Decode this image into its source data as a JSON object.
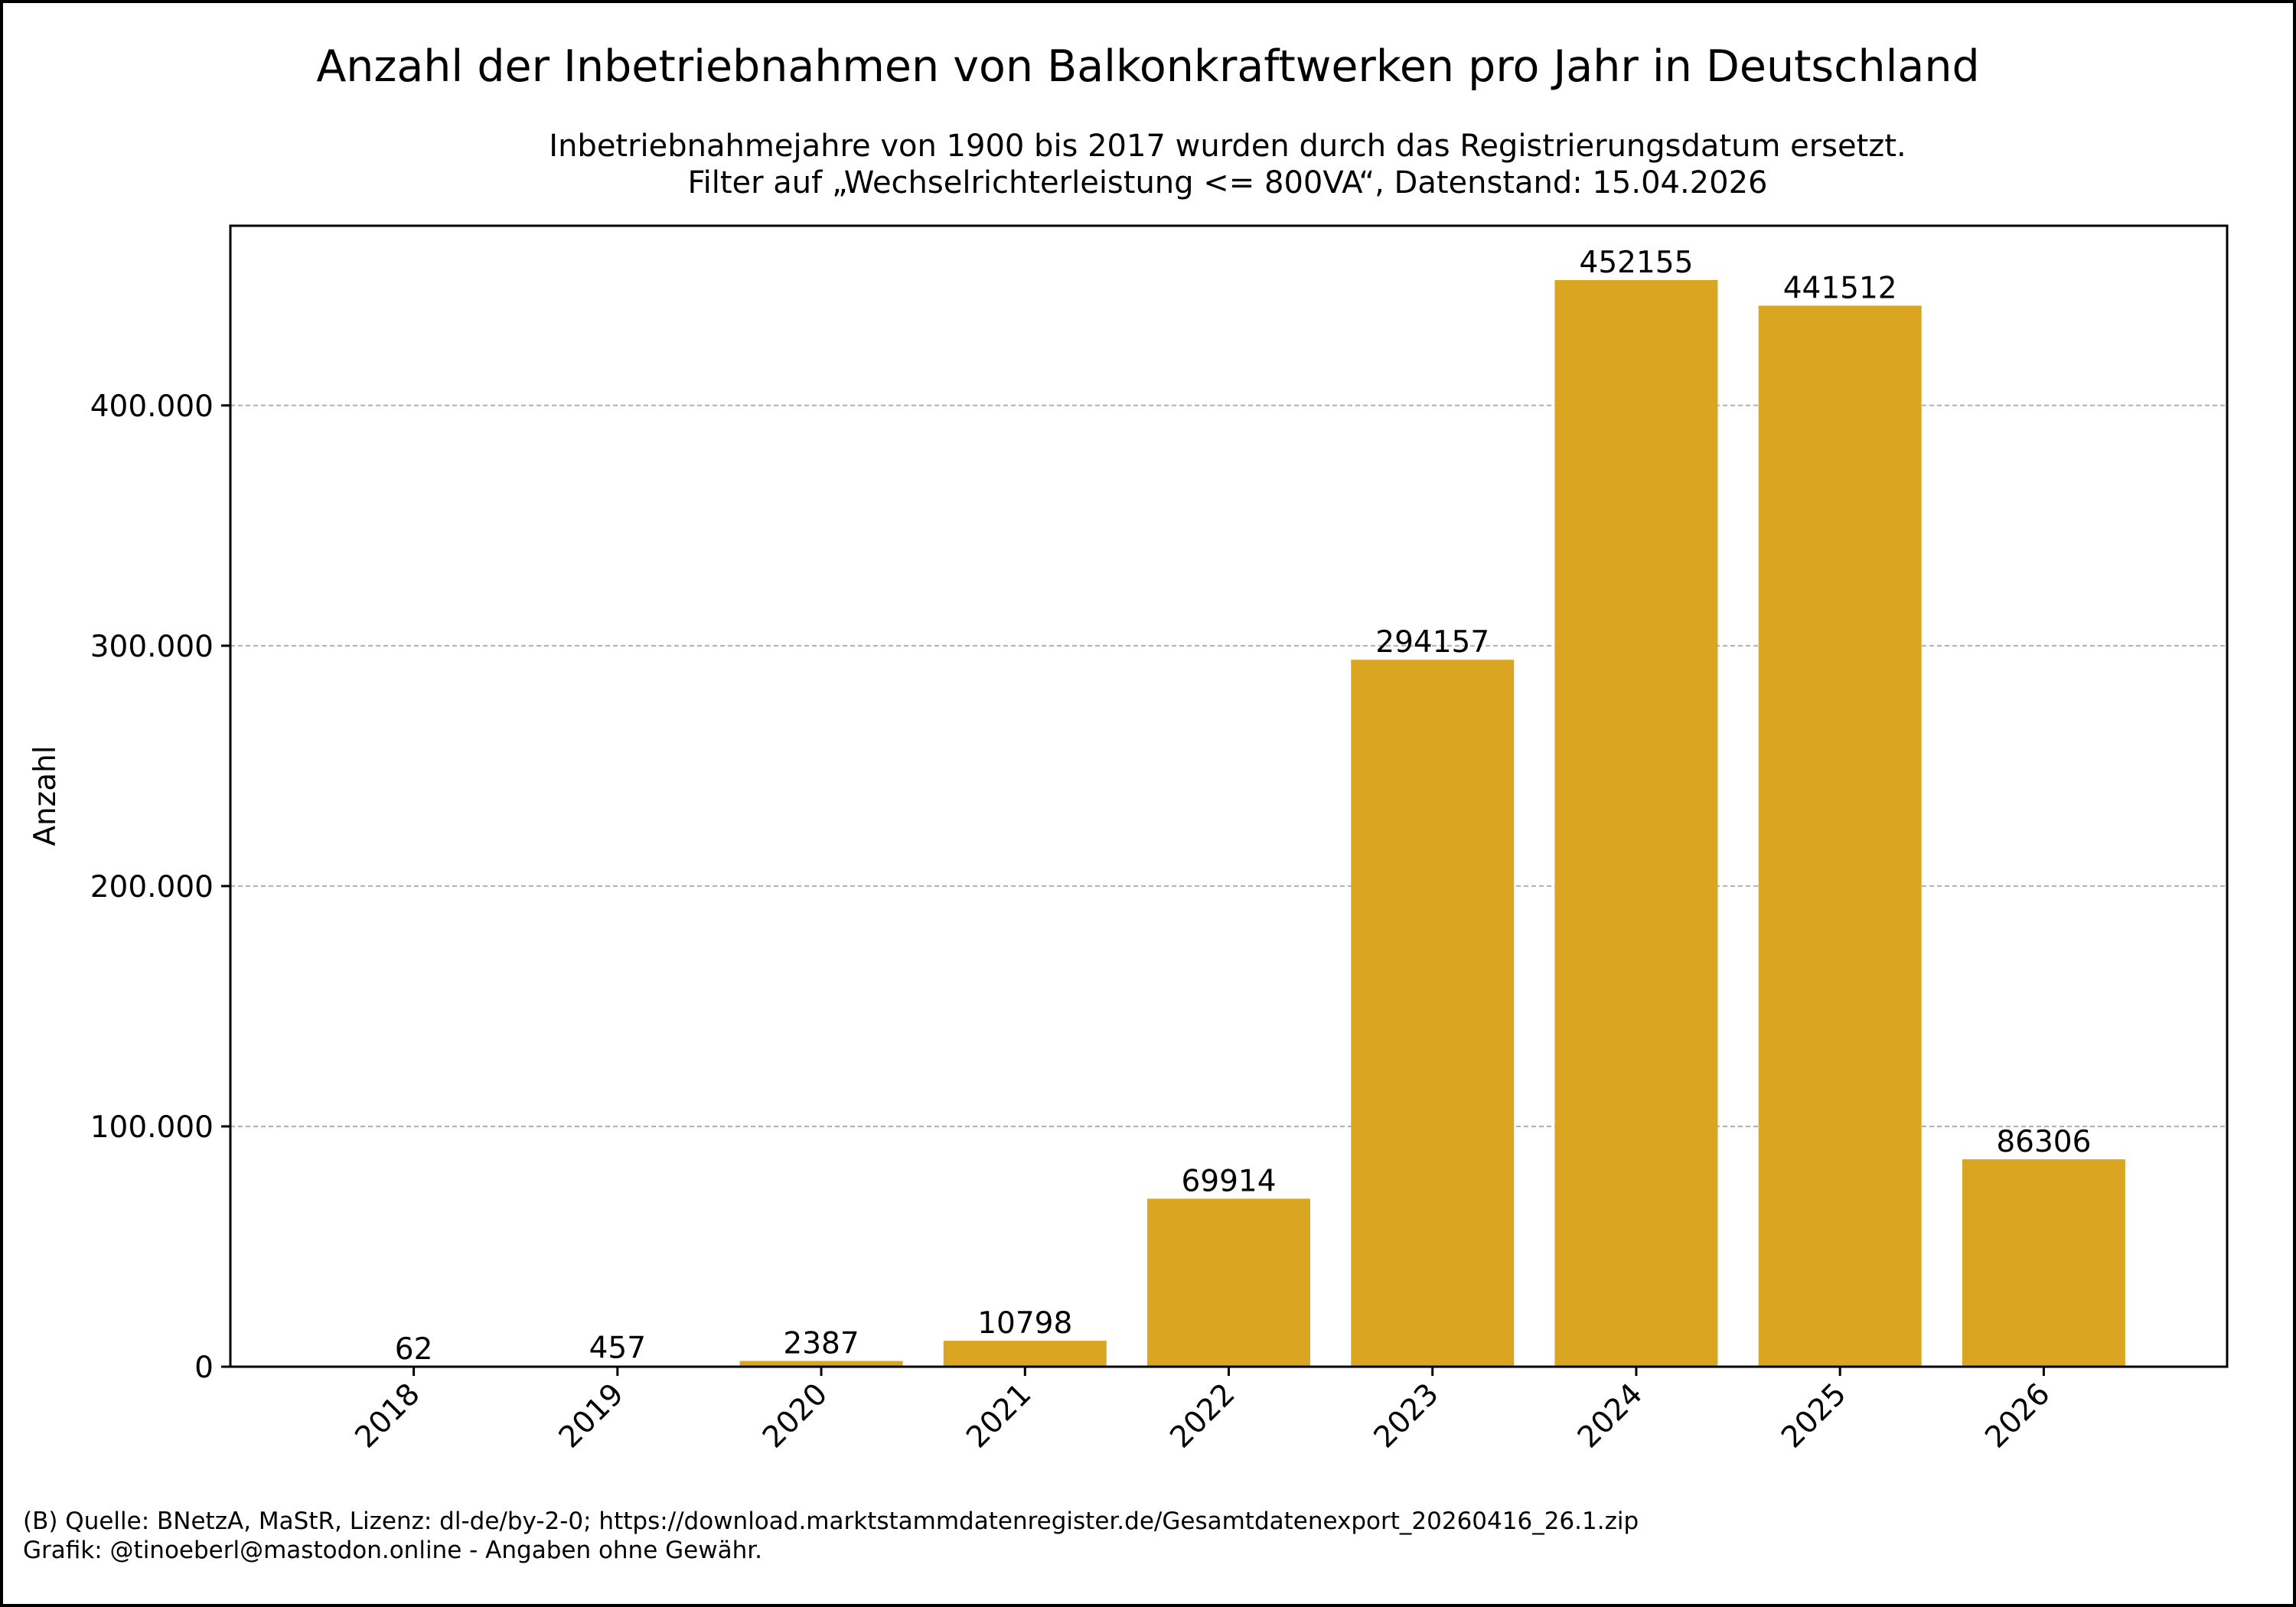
{
  "title": "Anzahl der Inbetriebnahmen von Balkonkraftwerken pro Jahr in Deutschland",
  "subtitle_lines": [
    "Inbetriebnahmejahre von 1900 bis 2017 wurden durch das Registrierungsdatum ersetzt.",
    "Filter auf „Wechselrichterleistung <= 800VA“, Datenstand: 15.04.2026"
  ],
  "footer_lines": [
    "(B) Quelle: BNetzA, MaStR, Lizenz: dl-de/by-2-0; https://download.marktstammdatenregister.de/Gesamtdatenexport_20260416_26.1.zip",
    "Grafik: @tinoeberl@mastodon.online - Angaben ohne Gewähr."
  ],
  "colors": {
    "bar": "#DAA520",
    "grid": "#b0b0b0",
    "axis": "#000000"
  },
  "chart_data": {
    "type": "bar",
    "title": "Anzahl der Inbetriebnahmen von Balkonkraftwerken pro Jahr in Deutschland",
    "xlabel": "",
    "ylabel": "Anzahl",
    "categories": [
      "2018",
      "2019",
      "2020",
      "2021",
      "2022",
      "2023",
      "2024",
      "2025",
      "2026"
    ],
    "values": [
      62,
      457,
      2387,
      10798,
      69914,
      294157,
      452155,
      441512,
      86306
    ],
    "data_labels": [
      "62",
      "457",
      "2387",
      "10798",
      "69914",
      "294157",
      "452155",
      "441512",
      "86306"
    ],
    "ylim": [
      0,
      474762.75
    ],
    "yticks": [
      0,
      100000,
      200000,
      300000,
      400000
    ],
    "ytick_labels": [
      "0",
      "100.000",
      "200.000",
      "300.000",
      "400.000"
    ],
    "grid": "y, dashed",
    "legend": "none"
  }
}
